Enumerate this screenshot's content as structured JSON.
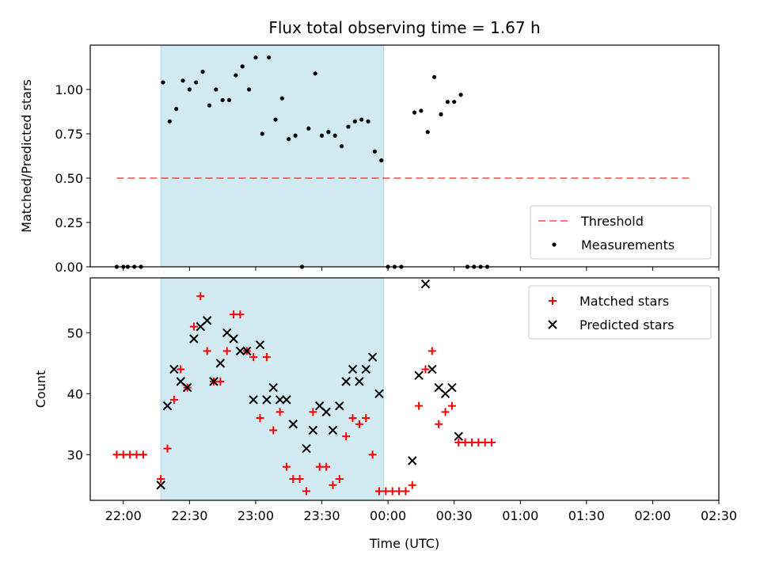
{
  "chart_data": [
    {
      "type": "scatter",
      "title": "Flux total observing time = 1.67 h",
      "xlabel": "",
      "ylabel": "Matched/Predicted stars",
      "xlim": [
        "21:45",
        "02:30"
      ],
      "ylim": [
        0,
        1.25
      ],
      "yticks": [
        "0.00",
        "0.25",
        "0.50",
        "0.75",
        "1.00"
      ],
      "ytick_values": [
        0,
        0.25,
        0.5,
        0.75,
        1.0
      ],
      "shaded_span": [
        "22:17",
        "23:58"
      ],
      "shaded_color": "#add8e6",
      "grid": false,
      "legend": {
        "position": "lower-right",
        "entries": [
          {
            "label": "Threshold",
            "style": "dashed-line",
            "color": "#ff0000"
          },
          {
            "label": "Measurements",
            "style": "dot",
            "color": "#000000"
          }
        ]
      },
      "threshold": {
        "value": 0.5,
        "x": [
          "21:57",
          "02:17"
        ]
      },
      "series": [
        {
          "name": "Measurements",
          "marker": "dot",
          "color": "#000000",
          "points": [
            [
              "21:57",
              0.0
            ],
            [
              "22:00",
              0.0
            ],
            [
              "22:02",
              0.0
            ],
            [
              "22:05",
              0.0
            ],
            [
              "22:08",
              0.0
            ],
            [
              "22:18",
              1.04
            ],
            [
              "22:21",
              0.82
            ],
            [
              "22:24",
              0.89
            ],
            [
              "22:27",
              1.05
            ],
            [
              "22:30",
              1.0
            ],
            [
              "22:33",
              1.04
            ],
            [
              "22:36",
              1.1
            ],
            [
              "22:39",
              0.91
            ],
            [
              "22:42",
              1.0
            ],
            [
              "22:45",
              0.94
            ],
            [
              "22:48",
              0.94
            ],
            [
              "22:51",
              1.08
            ],
            [
              "22:54",
              1.13
            ],
            [
              "22:57",
              1.0
            ],
            [
              "23:00",
              1.18
            ],
            [
              "23:03",
              0.75
            ],
            [
              "23:06",
              1.18
            ],
            [
              "23:09",
              0.83
            ],
            [
              "23:12",
              0.95
            ],
            [
              "23:15",
              0.72
            ],
            [
              "23:18",
              0.74
            ],
            [
              "23:21",
              0.0
            ],
            [
              "23:24",
              0.78
            ],
            [
              "23:27",
              1.09
            ],
            [
              "23:30",
              0.74
            ],
            [
              "23:33",
              0.76
            ],
            [
              "23:36",
              0.74
            ],
            [
              "23:39",
              0.68
            ],
            [
              "23:42",
              0.79
            ],
            [
              "23:45",
              0.82
            ],
            [
              "23:48",
              0.83
            ],
            [
              "23:51",
              0.82
            ],
            [
              "23:54",
              0.65
            ],
            [
              "23:57",
              0.6
            ],
            [
              "00:00",
              0.0
            ],
            [
              "00:03",
              0.0
            ],
            [
              "00:06",
              0.0
            ],
            [
              "00:12",
              0.87
            ],
            [
              "00:15",
              0.88
            ],
            [
              "00:18",
              0.76
            ],
            [
              "00:21",
              1.07
            ],
            [
              "00:24",
              0.86
            ],
            [
              "00:27",
              0.93
            ],
            [
              "00:30",
              0.93
            ],
            [
              "00:33",
              0.97
            ],
            [
              "00:36",
              0.0
            ],
            [
              "00:39",
              0.0
            ],
            [
              "00:42",
              0.0
            ],
            [
              "00:45",
              0.0
            ]
          ]
        }
      ]
    },
    {
      "type": "scatter",
      "title": "",
      "xlabel": "Time (UTC)",
      "ylabel": "Count",
      "xlim": [
        "21:45",
        "02:30"
      ],
      "ylim": [
        22.5,
        59
      ],
      "xticks": [
        "22:00",
        "22:30",
        "23:00",
        "23:30",
        "00:00",
        "00:30",
        "01:00",
        "01:30",
        "02:00",
        "02:30"
      ],
      "yticks": [
        "30",
        "40",
        "50"
      ],
      "ytick_values": [
        30,
        40,
        50
      ],
      "shaded_span": [
        "22:17",
        "23:58"
      ],
      "shaded_color": "#add8e6",
      "grid": false,
      "legend": {
        "position": "top-right",
        "entries": [
          {
            "label": "Matched stars",
            "style": "plus",
            "color": "#ff0000"
          },
          {
            "label": "Predicted stars",
            "style": "x",
            "color": "#000000"
          }
        ]
      },
      "series": [
        {
          "name": "Matched stars",
          "marker": "plus",
          "color": "#ff0000",
          "points": [
            [
              "21:57",
              30
            ],
            [
              "22:00",
              30
            ],
            [
              "22:03",
              30
            ],
            [
              "22:06",
              30
            ],
            [
              "22:09",
              30
            ],
            [
              "22:17",
              26
            ],
            [
              "22:20",
              31
            ],
            [
              "22:23",
              39
            ],
            [
              "22:26",
              44
            ],
            [
              "22:29",
              41
            ],
            [
              "22:32",
              51
            ],
            [
              "22:35",
              56
            ],
            [
              "22:38",
              47
            ],
            [
              "22:41",
              42
            ],
            [
              "22:44",
              42
            ],
            [
              "22:47",
              47
            ],
            [
              "22:50",
              53
            ],
            [
              "22:53",
              53
            ],
            [
              "22:56",
              47
            ],
            [
              "22:59",
              46
            ],
            [
              "23:02",
              36
            ],
            [
              "23:05",
              46
            ],
            [
              "23:08",
              34
            ],
            [
              "23:11",
              37
            ],
            [
              "23:14",
              28
            ],
            [
              "23:17",
              26
            ],
            [
              "23:20",
              26
            ],
            [
              "23:23",
              24
            ],
            [
              "23:26",
              37
            ],
            [
              "23:29",
              28
            ],
            [
              "23:32",
              28
            ],
            [
              "23:35",
              25
            ],
            [
              "23:38",
              26
            ],
            [
              "23:41",
              33
            ],
            [
              "23:44",
              36
            ],
            [
              "23:47",
              35
            ],
            [
              "23:50",
              36
            ],
            [
              "23:53",
              30
            ],
            [
              "23:56",
              24
            ],
            [
              "23:59",
              24
            ],
            [
              "00:02",
              24
            ],
            [
              "00:05",
              24
            ],
            [
              "00:08",
              24
            ],
            [
              "00:11",
              25
            ],
            [
              "00:14",
              38
            ],
            [
              "00:17",
              44
            ],
            [
              "00:20",
              47
            ],
            [
              "00:23",
              35
            ],
            [
              "00:26",
              37
            ],
            [
              "00:29",
              38
            ],
            [
              "00:32",
              32
            ],
            [
              "00:35",
              32
            ],
            [
              "00:38",
              32
            ],
            [
              "00:41",
              32
            ],
            [
              "00:44",
              32
            ],
            [
              "00:47",
              32
            ]
          ]
        },
        {
          "name": "Predicted stars",
          "marker": "x",
          "color": "#000000",
          "points": [
            [
              "22:17",
              25
            ],
            [
              "22:20",
              38
            ],
            [
              "22:23",
              44
            ],
            [
              "22:26",
              42
            ],
            [
              "22:29",
              41
            ],
            [
              "22:32",
              49
            ],
            [
              "22:35",
              51
            ],
            [
              "22:38",
              52
            ],
            [
              "22:41",
              42
            ],
            [
              "22:44",
              45
            ],
            [
              "22:47",
              50
            ],
            [
              "22:50",
              49
            ],
            [
              "22:53",
              47
            ],
            [
              "22:56",
              47
            ],
            [
              "22:59",
              39
            ],
            [
              "23:02",
              48
            ],
            [
              "23:05",
              39
            ],
            [
              "23:08",
              41
            ],
            [
              "23:11",
              39
            ],
            [
              "23:14",
              39
            ],
            [
              "23:17",
              35
            ],
            [
              "23:23",
              31
            ],
            [
              "23:26",
              34
            ],
            [
              "23:29",
              38
            ],
            [
              "23:32",
              37
            ],
            [
              "23:35",
              34
            ],
            [
              "23:38",
              38
            ],
            [
              "23:41",
              42
            ],
            [
              "23:44",
              44
            ],
            [
              "23:47",
              42
            ],
            [
              "23:50",
              44
            ],
            [
              "23:53",
              46
            ],
            [
              "23:56",
              40
            ],
            [
              "00:11",
              29
            ],
            [
              "00:14",
              43
            ],
            [
              "00:17",
              58
            ],
            [
              "00:20",
              44
            ],
            [
              "00:23",
              41
            ],
            [
              "00:26",
              40
            ],
            [
              "00:29",
              41
            ],
            [
              "00:32",
              33
            ]
          ]
        }
      ]
    }
  ]
}
